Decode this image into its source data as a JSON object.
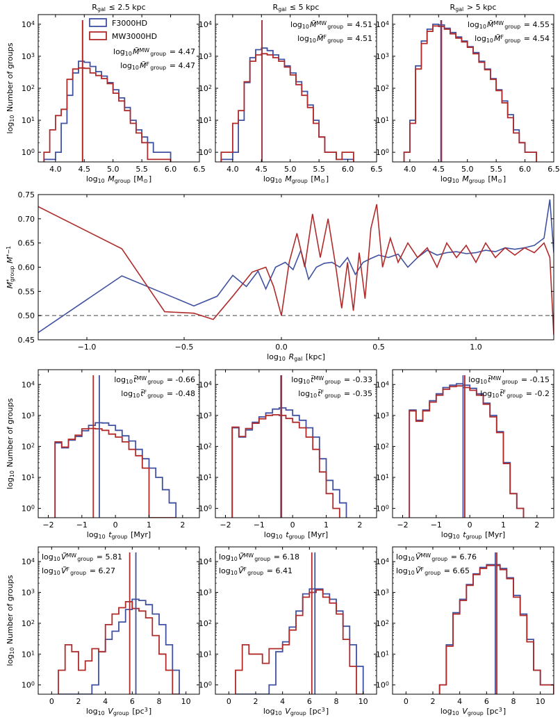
{
  "colors": {
    "F": "#3f51a0",
    "MW": "#b02a2a",
    "ref": "#808080"
  },
  "legend": {
    "F": "F3000HD",
    "MW": "MW3000HD"
  },
  "row_titles": [
    "R",
    "R",
    "R"
  ],
  "col_titles": [
    "R_gal ≤ 2.5 kpc",
    "R_gal ≤ 5 kpc",
    "R_gal > 5 kpc"
  ],
  "col_title_text": [
    {
      "pre": "R",
      "sub": "gal",
      "post": " ≤ 2.5 kpc"
    },
    {
      "pre": "R",
      "sub": "gal",
      "post": " ≤ 5 kpc"
    },
    {
      "pre": "R",
      "sub": "gal",
      "post": " > 5 kpc"
    }
  ],
  "ylabel_count": {
    "pre": "log",
    "sub": "10",
    "post": " Number of groups"
  },
  "ylabel_ratio": "M*group M*−1",
  "chart_data": [
    {
      "id": "mass",
      "type": "step",
      "xlabel": {
        "pre": "log",
        "sub": "10",
        "mid": " M",
        "sub2": "group",
        "post": " [M",
        "sun": "⊙",
        "end": "]"
      },
      "xlim": [
        3.7,
        6.5
      ],
      "xticks": [
        "4.0",
        "4.5",
        "5.0",
        "5.5",
        "6.0",
        "6.5"
      ],
      "xtickvals": [
        4.0,
        4.5,
        5.0,
        5.5,
        6.0,
        6.5
      ],
      "ylim": [
        0.5,
        20000
      ],
      "panels": [
        {
          "edges": [
            3.8,
            3.9,
            4.0,
            4.1,
            4.2,
            4.3,
            4.4,
            4.5,
            4.6,
            4.7,
            4.8,
            4.9,
            5.0,
            5.1,
            5.2,
            5.3,
            5.4,
            5.5,
            5.6,
            5.7,
            5.8,
            5.9,
            6.0
          ],
          "F": [
            0.6,
            0.6,
            1.0,
            8,
            60,
            300,
            700,
            650,
            480,
            330,
            240,
            150,
            90,
            50,
            25,
            10,
            5,
            3,
            2,
            1,
            1,
            1
          ],
          "MW": [
            1.0,
            5,
            14,
            22,
            190,
            400,
            430,
            420,
            300,
            250,
            200,
            140,
            70,
            40,
            20,
            8,
            4,
            2,
            0.6,
            0.6,
            0.6,
            0.6
          ],
          "medians": {
            "MW": 4.47,
            "F": 4.47
          },
          "annot": [
            {
              "label": "log10 M̃MW group = 4.47",
              "key": "MW",
              "val": "4.47"
            },
            {
              "label": "log10 M̃F group = 4.47",
              "key": "F",
              "val": "4.47"
            }
          ],
          "annot_symbol": "M̃",
          "legend": true
        },
        {
          "edges": [
            3.8,
            3.9,
            4.0,
            4.1,
            4.2,
            4.3,
            4.4,
            4.5,
            4.6,
            4.7,
            4.8,
            4.9,
            5.0,
            5.1,
            5.2,
            5.3,
            5.4,
            5.5,
            5.6,
            5.7,
            5.8,
            5.9,
            6.0,
            6.1
          ],
          "F": [
            0.6,
            0.6,
            1.0,
            10,
            150,
            900,
            1600,
            1800,
            1500,
            1100,
            800,
            500,
            300,
            160,
            80,
            30,
            10,
            3,
            1,
            1,
            0.6,
            0.6,
            0.6
          ],
          "MW": [
            1.0,
            1.0,
            8,
            20,
            160,
            700,
            1100,
            1200,
            1100,
            900,
            700,
            460,
            260,
            130,
            60,
            25,
            8,
            3,
            1,
            1,
            0.6,
            1,
            1
          ],
          "medians": {
            "MW": 4.51,
            "F": 4.51
          },
          "annot": [
            {
              "key": "MW",
              "val": "4.51"
            },
            {
              "key": "F",
              "val": "4.51"
            }
          ],
          "annot_symbol": "M̃",
          "legend": false
        },
        {
          "edges": [
            3.9,
            4.0,
            4.1,
            4.2,
            4.3,
            4.4,
            4.5,
            4.6,
            4.7,
            4.8,
            4.9,
            5.0,
            5.1,
            5.2,
            5.3,
            5.4,
            5.5,
            5.6,
            5.7,
            5.8,
            5.9,
            6.0,
            6.1,
            6.2
          ],
          "F": [
            1.0,
            10,
            500,
            3000,
            7000,
            10000,
            9500,
            7500,
            5500,
            4000,
            3000,
            2000,
            1300,
            700,
            400,
            200,
            90,
            40,
            15,
            5,
            2,
            1,
            1
          ],
          "MW": [
            1.0,
            8,
            400,
            2500,
            6000,
            8800,
            8500,
            7000,
            5000,
            3700,
            2800,
            1900,
            1200,
            650,
            380,
            190,
            85,
            35,
            12,
            4,
            2,
            1,
            1
          ],
          "medians": {
            "MW": 4.55,
            "F": 4.54
          },
          "annot": [
            {
              "key": "MW",
              "val": "4.55"
            },
            {
              "key": "F",
              "val": "4.54"
            }
          ],
          "annot_symbol": "M̃",
          "legend": false
        }
      ]
    },
    {
      "id": "ratio",
      "type": "line",
      "xlabel": {
        "pre": "log",
        "sub": "10",
        "mid": " R",
        "sub2": "gal",
        "post": " [kpc]"
      },
      "xlim": [
        -1.25,
        1.4
      ],
      "xticks": [
        "−1.0",
        "−0.5",
        "0.0",
        "0.5",
        "1.0"
      ],
      "xtickvals": [
        -1.0,
        -0.5,
        0.0,
        0.5,
        1.0
      ],
      "ylim": [
        0.45,
        0.75
      ],
      "yticks": [
        "0.45",
        "0.50",
        "0.55",
        "0.60",
        "0.65",
        "0.70",
        "0.75"
      ],
      "ytickvals": [
        0.45,
        0.5,
        0.55,
        0.6,
        0.65,
        0.7,
        0.75
      ],
      "hline": 0.5,
      "F": {
        "x": [
          -1.25,
          -0.82,
          -0.45,
          -0.33,
          -0.25,
          -0.18,
          -0.12,
          -0.08,
          -0.03,
          0.02,
          0.06,
          0.1,
          0.14,
          0.18,
          0.22,
          0.26,
          0.3,
          0.34,
          0.38,
          0.42,
          0.46,
          0.5,
          0.55,
          0.6,
          0.65,
          0.7,
          0.75,
          0.8,
          0.85,
          0.9,
          0.95,
          1.0,
          1.05,
          1.1,
          1.15,
          1.2,
          1.25,
          1.3,
          1.35,
          1.38,
          1.4
        ],
        "y": [
          0.465,
          0.582,
          0.52,
          0.54,
          0.583,
          0.56,
          0.592,
          0.555,
          0.6,
          0.61,
          0.595,
          0.635,
          0.575,
          0.6,
          0.608,
          0.61,
          0.6,
          0.62,
          0.585,
          0.61,
          0.618,
          0.625,
          0.62,
          0.627,
          0.6,
          0.62,
          0.635,
          0.625,
          0.63,
          0.632,
          0.628,
          0.63,
          0.635,
          0.632,
          0.64,
          0.637,
          0.64,
          0.645,
          0.66,
          0.74,
          0.63
        ]
      },
      "MW": {
        "x": [
          -1.25,
          -0.82,
          -0.6,
          -0.45,
          -0.35,
          -0.25,
          -0.15,
          -0.08,
          -0.04,
          0.0,
          0.04,
          0.08,
          0.12,
          0.16,
          0.2,
          0.24,
          0.28,
          0.31,
          0.34,
          0.37,
          0.4,
          0.43,
          0.46,
          0.49,
          0.52,
          0.56,
          0.6,
          0.65,
          0.7,
          0.75,
          0.8,
          0.85,
          0.9,
          0.95,
          1.0,
          1.05,
          1.1,
          1.15,
          1.2,
          1.25,
          1.3,
          1.35,
          1.38,
          1.4
        ],
        "y": [
          0.725,
          0.638,
          0.508,
          0.505,
          0.492,
          0.54,
          0.59,
          0.6,
          0.56,
          0.5,
          0.61,
          0.67,
          0.6,
          0.71,
          0.62,
          0.7,
          0.6,
          0.515,
          0.61,
          0.51,
          0.63,
          0.535,
          0.68,
          0.73,
          0.6,
          0.66,
          0.61,
          0.65,
          0.62,
          0.64,
          0.6,
          0.65,
          0.62,
          0.645,
          0.61,
          0.65,
          0.62,
          0.64,
          0.625,
          0.64,
          0.63,
          0.65,
          0.62,
          0.46
        ]
      }
    },
    {
      "id": "time",
      "type": "step",
      "xlabel": {
        "pre": "log",
        "sub": "10",
        "mid": " t",
        "sub2": "group",
        "post": " [Myr]"
      },
      "xlim": [
        -2.3,
        2.5
      ],
      "xticks": [
        "−2",
        "−1",
        "0",
        "1",
        "2"
      ],
      "xtickvals": [
        -2,
        -1,
        0,
        1,
        2
      ],
      "ylim": [
        0.5,
        30000
      ],
      "panels": [
        {
          "edges": [
            -1.8,
            -1.6,
            -1.4,
            -1.2,
            -1.0,
            -0.8,
            -0.6,
            -0.4,
            -0.2,
            0.0,
            0.2,
            0.4,
            0.6,
            0.8,
            1.0,
            1.2,
            1.4,
            1.6,
            1.8,
            2.0
          ],
          "F": [
            130,
            90,
            160,
            210,
            320,
            480,
            580,
            570,
            480,
            330,
            220,
            150,
            80,
            40,
            20,
            10,
            4,
            1.5
          ],
          "MW": [
            140,
            95,
            170,
            230,
            370,
            380,
            370,
            330,
            250,
            200,
            140,
            80,
            50,
            20,
            0.5,
            0.5,
            0.5,
            0.5
          ],
          "medians": {
            "MW": -0.66,
            "F": -0.48
          },
          "annot": [
            {
              "key": "MW",
              "val": "-0.66"
            },
            {
              "key": "F",
              "val": "-0.48"
            }
          ],
          "annot_symbol": "t̃",
          "legend": false
        },
        {
          "edges": [
            -1.8,
            -1.6,
            -1.4,
            -1.2,
            -1.0,
            -0.8,
            -0.6,
            -0.4,
            -0.2,
            0.0,
            0.2,
            0.4,
            0.6,
            0.8,
            1.0,
            1.2,
            1.4,
            1.6,
            1.8
          ],
          "F": [
            400,
            200,
            340,
            600,
            900,
            1200,
            1600,
            1750,
            1500,
            1000,
            700,
            400,
            200,
            40,
            8,
            4,
            1.5
          ],
          "MW": [
            420,
            210,
            380,
            560,
            780,
            1000,
            1050,
            1000,
            800,
            600,
            400,
            200,
            80,
            15,
            3,
            1
          ],
          "medians": {
            "MW": -0.33,
            "F": -0.35
          },
          "annot": [
            {
              "key": "MW",
              "val": "-0.33"
            },
            {
              "key": "F",
              "val": "-0.35"
            }
          ],
          "annot_symbol": "t̃",
          "legend": false
        },
        {
          "edges": [
            -1.8,
            -1.6,
            -1.4,
            -1.2,
            -1.0,
            -0.8,
            -0.6,
            -0.4,
            -0.2,
            0.0,
            0.2,
            0.4,
            0.6,
            0.8,
            1.0,
            1.2,
            1.4,
            1.6
          ],
          "F": [
            1500,
            700,
            1500,
            3000,
            5000,
            8000,
            9500,
            10500,
            9500,
            7500,
            5000,
            2500,
            1000,
            300,
            30,
            3,
            1
          ],
          "MW": [
            1400,
            650,
            1400,
            2700,
            4500,
            7000,
            8500,
            9000,
            8000,
            6500,
            4500,
            2300,
            900,
            280,
            28,
            3,
            1
          ],
          "medians": {
            "MW": -0.15,
            "F": -0.2
          },
          "annot": [
            {
              "key": "MW",
              "val": "-0.15"
            },
            {
              "key": "F",
              "val": "-0.2"
            }
          ],
          "annot_symbol": "t̃",
          "legend": false
        }
      ]
    },
    {
      "id": "volume",
      "type": "step",
      "xlabel": {
        "pre": "log",
        "sub": "10",
        "mid": " V",
        "sub2": "group",
        "post": " [pc",
        "sup": "3",
        "end": "]"
      },
      "xlim": [
        -1.0,
        11.0
      ],
      "xticks": [
        "0",
        "2",
        "4",
        "6",
        "8",
        "10"
      ],
      "xtickvals": [
        0,
        2,
        4,
        6,
        8,
        10
      ],
      "ylim": [
        0.5,
        30000
      ],
      "panels": [
        {
          "edges": [
            0.5,
            1.0,
            1.5,
            2.0,
            2.5,
            3.0,
            3.5,
            4.0,
            4.5,
            5.0,
            5.5,
            6.0,
            6.5,
            7.0,
            7.5,
            8.0,
            8.5,
            9.0,
            9.5
          ],
          "F": [
            0.5,
            0.5,
            0.5,
            0.5,
            0.5,
            1,
            12,
            30,
            55,
            110,
            280,
            600,
            550,
            400,
            200,
            90,
            20,
            3
          ],
          "MW": [
            3,
            20,
            12,
            3,
            6,
            15,
            12,
            90,
            200,
            320,
            500,
            300,
            250,
            150,
            40,
            10,
            3,
            0.5
          ],
          "medians": {
            "MW": 5.81,
            "F": 6.27
          },
          "annot": [
            {
              "key": "MW",
              "val": "5.81"
            },
            {
              "key": "F",
              "val": "6.27"
            }
          ],
          "annot_symbol": "Ṽ",
          "legend": false
        },
        {
          "edges": [
            0.5,
            1.0,
            1.5,
            2.0,
            2.5,
            3.0,
            3.5,
            4.0,
            4.5,
            5.0,
            5.5,
            6.0,
            6.5,
            7.0,
            7.5,
            8.0,
            8.5,
            9.0,
            9.5,
            10.0
          ],
          "F": [
            0.5,
            0.5,
            0.5,
            0.5,
            0.5,
            1,
            12,
            25,
            75,
            250,
            900,
            1300,
            1300,
            900,
            600,
            250,
            80,
            20,
            4
          ],
          "MW": [
            3,
            20,
            10,
            10,
            5,
            15,
            15,
            20,
            60,
            180,
            700,
            1000,
            1200,
            700,
            450,
            200,
            30,
            4,
            0.5
          ],
          "medians": {
            "MW": 6.18,
            "F": 6.41
          },
          "annot": [
            {
              "key": "MW",
              "val": "6.18"
            },
            {
              "key": "F",
              "val": "6.41"
            }
          ],
          "annot_symbol": "Ṽ",
          "legend": false
        },
        {
          "edges": [
            2.5,
            3.0,
            3.5,
            4.0,
            4.5,
            5.0,
            5.5,
            6.0,
            6.5,
            7.0,
            7.5,
            8.0,
            8.5,
            9.0,
            9.5,
            10.0,
            10.5,
            11.0
          ],
          "F": [
            1,
            20,
            220,
            600,
            1800,
            4000,
            6500,
            8000,
            8000,
            6000,
            3000,
            800,
            200,
            30,
            3,
            1,
            1
          ],
          "MW": [
            1,
            18,
            200,
            550,
            1700,
            3800,
            6000,
            7500,
            7500,
            5500,
            2800,
            700,
            180,
            25,
            3,
            1,
            1
          ],
          "medians": {
            "MW": 6.76,
            "F": 6.65
          },
          "annot": [
            {
              "key": "MW",
              "val": "6.76"
            },
            {
              "key": "F",
              "val": "6.65"
            }
          ],
          "annot_symbol": "Ṽ",
          "legend": false
        }
      ]
    }
  ],
  "annot_prefix": "log10",
  "annot_sub_group": "group"
}
